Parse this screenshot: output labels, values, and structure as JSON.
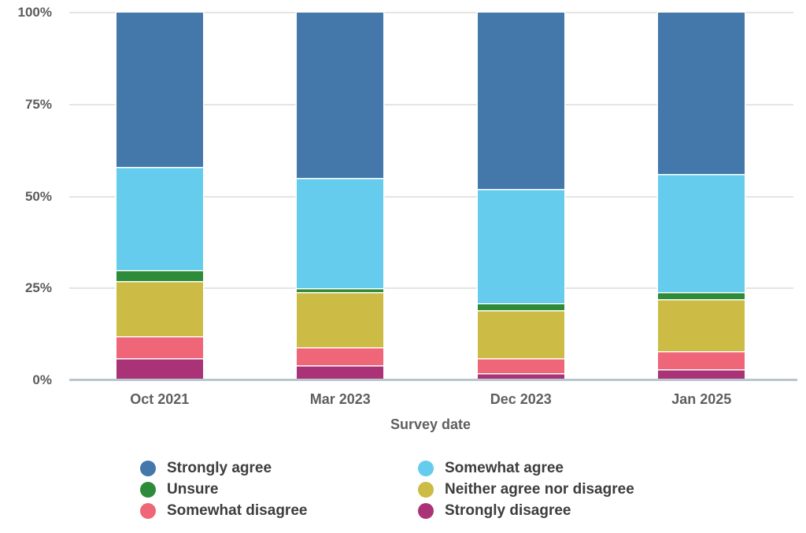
{
  "chart_data": {
    "type": "bar",
    "stacked": true,
    "title": "",
    "xlabel": "Survey date",
    "ylabel": "",
    "ylim": [
      0,
      100
    ],
    "grid": true,
    "legend_position": "bottom",
    "yticks": [
      {
        "value": 100,
        "label": "100%"
      },
      {
        "value": 75,
        "label": "75%"
      },
      {
        "value": 50,
        "label": "50%"
      },
      {
        "value": 25,
        "label": "25%"
      },
      {
        "value": 0,
        "label": "0%"
      }
    ],
    "categories": [
      "Oct 2021",
      "Mar 2023",
      "Dec 2023",
      "Jan 2025"
    ],
    "series": [
      {
        "name": "Strongly agree",
        "color": "#4477AA",
        "values": [
          42,
          45,
          48,
          44
        ]
      },
      {
        "name": "Somewhat agree",
        "color": "#66CCEE",
        "values": [
          28,
          30,
          31,
          32
        ]
      },
      {
        "name": "Unsure",
        "color": "#2E8B3A",
        "values": [
          3,
          1,
          2,
          2
        ]
      },
      {
        "name": "Neither agree nor disagree",
        "color": "#CCBB44",
        "values": [
          15,
          15,
          13,
          14
        ]
      },
      {
        "name": "Somewhat disagree",
        "color": "#EE6677",
        "values": [
          6,
          5,
          4,
          5
        ]
      },
      {
        "name": "Strongly disagree",
        "color": "#AA3377",
        "values": [
          6,
          4,
          2,
          3
        ]
      }
    ],
    "stack_order_bottom_to_top": [
      "Strongly disagree",
      "Somewhat disagree",
      "Neither agree nor disagree",
      "Unsure",
      "Somewhat agree",
      "Strongly agree"
    ]
  },
  "legend": {
    "columns": [
      [
        "Strongly agree",
        "Unsure",
        "Somewhat disagree"
      ],
      [
        "Somewhat agree",
        "Neither agree nor disagree",
        "Strongly disagree"
      ]
    ]
  },
  "style": {
    "background": "#ffffff",
    "gridline_color": "#e4e4e2",
    "axis_line_color": "#b9c6cf",
    "tick_label_color": "#5c5c5c",
    "axis_title_color": "#5f5f5f",
    "legend_text_color": "#3d3d3d"
  }
}
